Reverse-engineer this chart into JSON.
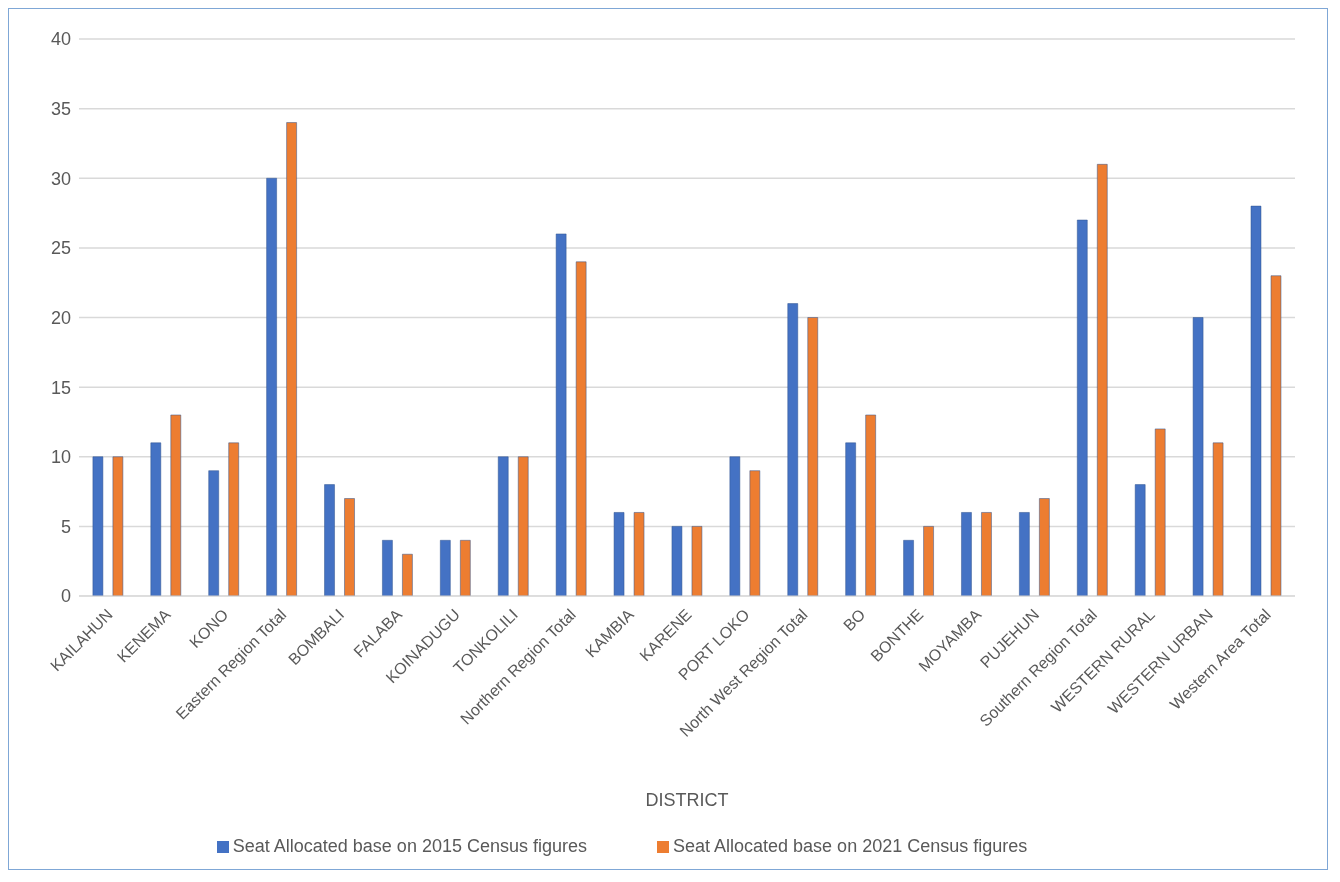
{
  "chart_data": {
    "type": "bar",
    "xlabel": "DISTRICT",
    "categories": [
      "KAILAHUN",
      "KENEMA",
      "KONO",
      "Eastern Region Total",
      "BOMBALI",
      "FALABA",
      "KOINADUGU",
      "TONKOLILI",
      "Northern Region Total",
      "KAMBIA",
      "KARENE",
      "PORT LOKO",
      "North West Region Total",
      "BO",
      "BONTHE",
      "MOYAMBA",
      "PUJEHUN",
      "Southern Region Total",
      "WESTERN RURAL",
      "WESTERN URBAN",
      "Western Area Total"
    ],
    "series": [
      {
        "name": "Seat Allocated base on 2015 Census figures",
        "color": "#4472c4",
        "values": [
          10,
          11,
          9,
          30,
          8,
          4,
          4,
          10,
          26,
          6,
          5,
          10,
          21,
          11,
          4,
          6,
          6,
          27,
          8,
          20,
          28
        ]
      },
      {
        "name": "Seat Allocated base on 2021 Census figures",
        "color": "#ed7d31",
        "values": [
          10,
          13,
          11,
          34,
          7,
          3,
          4,
          10,
          24,
          6,
          5,
          9,
          20,
          13,
          5,
          6,
          7,
          31,
          12,
          11,
          23
        ]
      }
    ],
    "ylim": [
      0,
      40
    ],
    "yticks": [
      0,
      5,
      10,
      15,
      20,
      25,
      30,
      35,
      40
    ],
    "grid": "y",
    "legend": "bottom"
  }
}
